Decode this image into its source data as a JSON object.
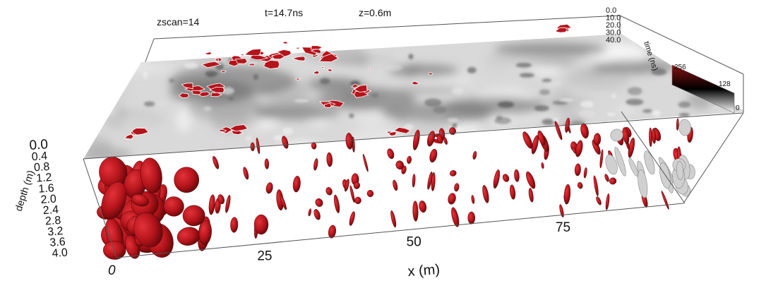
{
  "header": {
    "zscan": "zscan=14",
    "time": "t=14.7ns",
    "depth": "z=0.6m"
  },
  "chart_data": {
    "type": "heatmap",
    "description_visible": "3D GPR volume with a grey depth slice and red isosurfaces",
    "x_axis": {
      "label": "x (m)",
      "ticks": [
        0,
        25,
        50,
        75
      ]
    },
    "depth_axis": {
      "label": "depth (m)",
      "ticks": [
        "0.0",
        "0.4",
        "0.8",
        "1.2",
        "1.6",
        "2.0",
        "2.4",
        "2.8",
        "3.2",
        "3.6",
        "4.0"
      ]
    },
    "time_axis": {
      "label": "time (ns)",
      "ticks": [
        "0.0",
        "10.0",
        "20.0",
        "30.0",
        "40.0"
      ]
    },
    "colorbar": {
      "ticks": [
        "256",
        "128",
        "0"
      ],
      "colors": [
        "#c4161c",
        "#000000",
        "#ffffff"
      ]
    },
    "isosurface_color": "#b5141b",
    "slice_colormap": [
      "#ffffff",
      "#000000"
    ]
  }
}
